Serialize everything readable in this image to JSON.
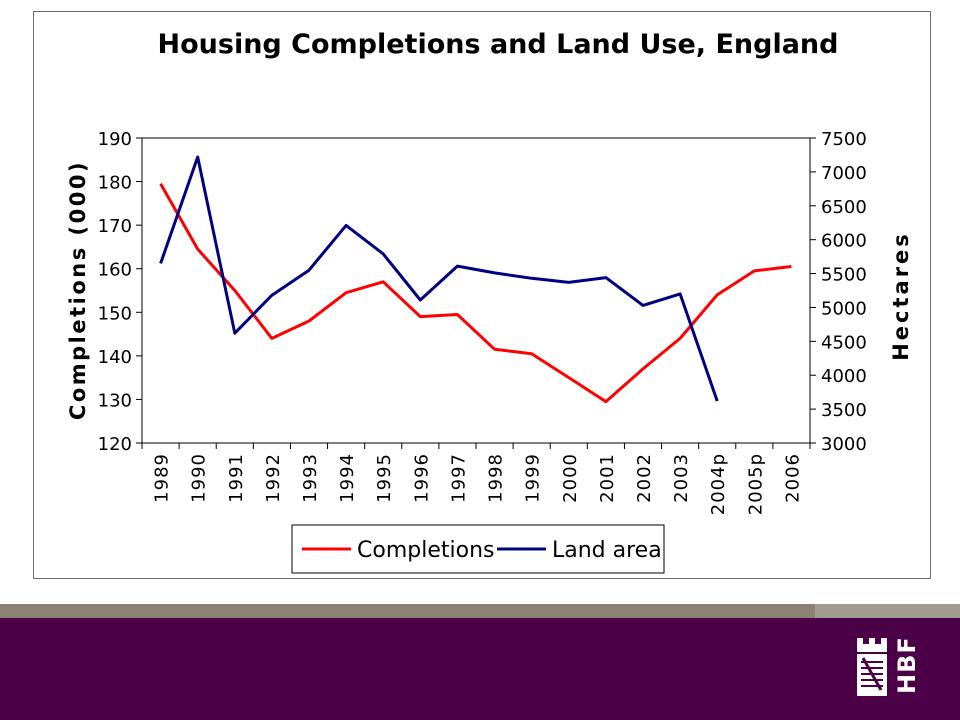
{
  "chart_data": {
    "type": "line",
    "title": "Housing Completions and Land Use, England",
    "categories": [
      "1989",
      "1990",
      "1991",
      "1992",
      "1993",
      "1994",
      "1995",
      "1996",
      "1997",
      "1998",
      "1999",
      "2000",
      "2001",
      "2002",
      "2003",
      "2004p",
      "2005p",
      "2006"
    ],
    "ylabel": "Completions (000)",
    "y2label": "Hectares",
    "ylim": [
      120,
      190
    ],
    "yticks": [
      120,
      130,
      140,
      150,
      160,
      170,
      180,
      190
    ],
    "y2lim": [
      3000,
      7500
    ],
    "y2ticks": [
      3000,
      3500,
      4000,
      4500,
      5000,
      5500,
      6000,
      6500,
      7000,
      7500
    ],
    "grid": false,
    "legend_position": "bottom",
    "series": [
      {
        "name": "Completions",
        "axis": "left",
        "color": "#ff0000",
        "values": [
          179.5,
          164.5,
          155,
          144,
          148,
          154.5,
          157,
          149,
          149.5,
          141.5,
          140.5,
          135,
          129.5,
          137,
          144,
          154,
          159.5,
          160.5
        ]
      },
      {
        "name": "Land area",
        "axis": "right",
        "color": "#000080",
        "values": [
          5650,
          7220,
          4620,
          5180,
          5550,
          6210,
          5790,
          5110,
          5610,
          5510,
          5430,
          5370,
          5440,
          5030,
          5200,
          3620,
          null,
          null
        ]
      }
    ]
  },
  "footer": {
    "stripe_color": "#8b8174",
    "stripe_right_color": "#a39b90",
    "band_color": "#4b0047",
    "logo_text": "HBF"
  }
}
